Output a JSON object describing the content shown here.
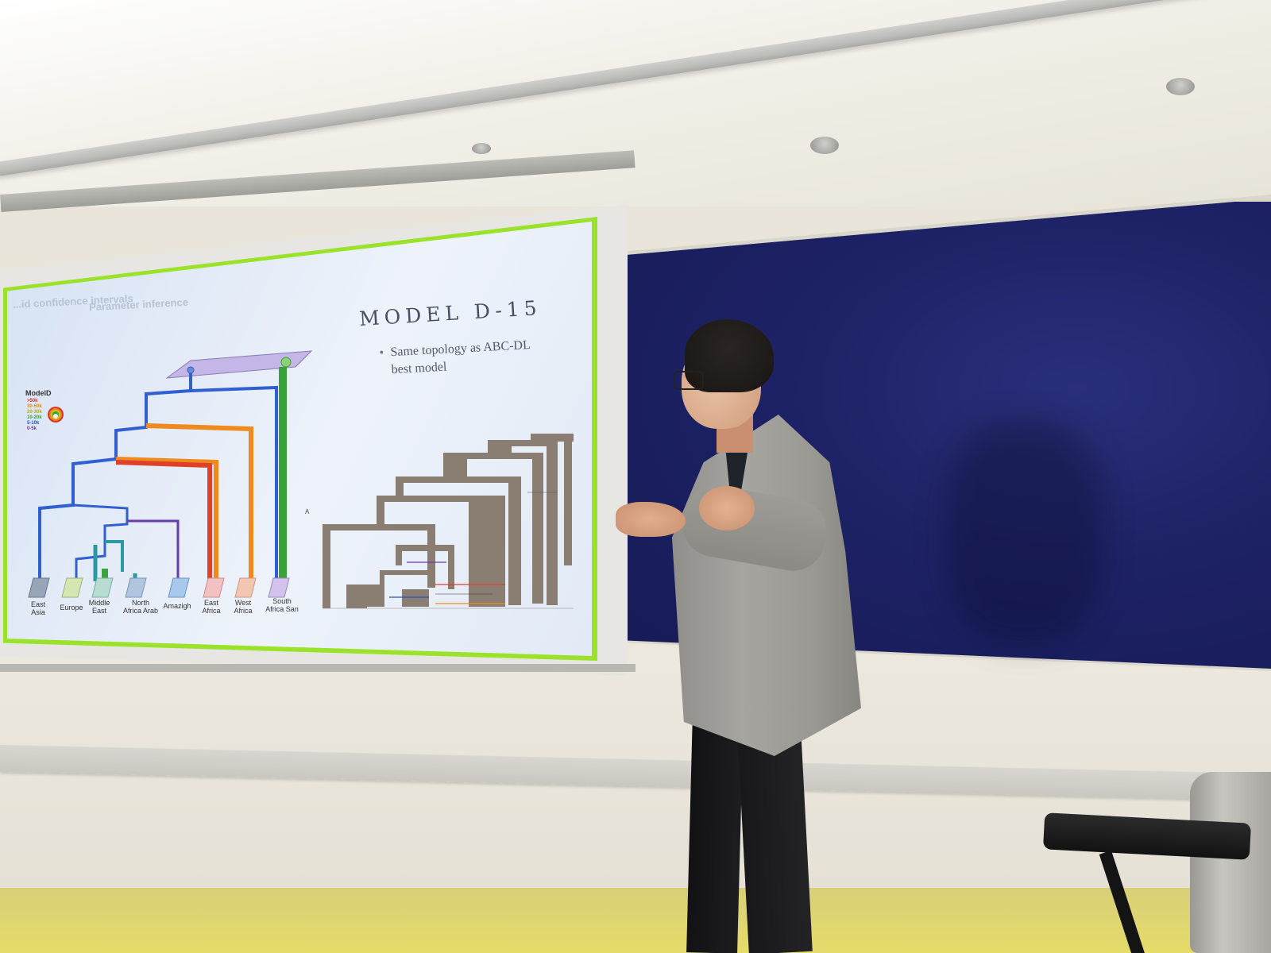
{
  "slide": {
    "breadcrumb_left": "...id confidence intervals",
    "breadcrumb_right": "Parameter inference",
    "title": "MODEL D-15",
    "bullet_line1": "Same topology as ABC-DL",
    "bullet_line2": "best model",
    "legend": {
      "title": "ModelD",
      "items": [
        {
          "label": ">50k",
          "color": "#e0302a"
        },
        {
          "label": "30-50k",
          "color": "#e08a1c"
        },
        {
          "label": "20-30k",
          "color": "#d4c21c"
        },
        {
          "label": "10-20k",
          "color": "#3a9e3a"
        },
        {
          "label": "5-10k",
          "color": "#2a52c8"
        },
        {
          "label": "0-5k",
          "color": "#6a3ab0"
        }
      ]
    },
    "populations": [
      {
        "line1": "East",
        "line2": "Asia"
      },
      {
        "line1": "Europe",
        "line2": ""
      },
      {
        "line1": "Middle",
        "line2": "East"
      },
      {
        "line1": "North",
        "line2": "Africa Arab"
      },
      {
        "line1": "Amazigh",
        "line2": ""
      },
      {
        "line1": "East",
        "line2": "Africa"
      },
      {
        "line1": "West",
        "line2": "Africa"
      },
      {
        "line1": "South",
        "line2": "Africa San"
      }
    ],
    "small_marker": "A"
  },
  "colors": {
    "slide_border": "#9be22b",
    "blackboard": "#1d2266",
    "branch_blue": "#2f5fd0",
    "branch_orange": "#ef8a1e",
    "branch_red": "#e0402a",
    "branch_green": "#3aa23a"
  }
}
